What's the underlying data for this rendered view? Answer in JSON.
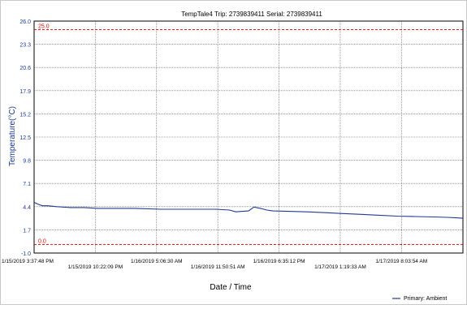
{
  "chart_data": {
    "type": "line",
    "title": "TempTale4  Trip: 2739839411  Serial: 2739839411",
    "xlabel": "Date / Time",
    "ylabel": "Temperature(°C)",
    "ylim": [
      -1.0,
      26.0
    ],
    "y_ticks": [
      "26.0",
      "23.3",
      "20.6",
      "17.9",
      "15.2",
      "12.5",
      "9.8",
      "7.1",
      "4.4",
      "1.7",
      "-1.0"
    ],
    "x_tick_labels": [
      "1/15/2019 3:37:48 PM",
      "1/15/2019 10:22:09 PM",
      "1/16/2019 5:06:30 AM",
      "1/16/2019 11:50:51 AM",
      "1/16/2019 6:35:12 PM",
      "1/17/2019 1:19:33 AM",
      "1/17/2019 8:03:54 AM"
    ],
    "x_tick_hours": [
      0,
      6.7392,
      13.4783,
      20.2175,
      26.9567,
      33.6958,
      40.435
    ],
    "xlim_hours": [
      0,
      47.2
    ],
    "thresholds": [
      {
        "label": "25.0",
        "value": 25.0,
        "color": "#e00000"
      },
      {
        "label": "0.0",
        "value": 0.0,
        "color": "#e00000"
      }
    ],
    "grid": true,
    "legend_position": "bottom-right",
    "series": [
      {
        "name": "Primary: Ambient",
        "color": "#1f3a93",
        "x_hours": [
          0,
          0.4,
          0.9,
          1.5,
          2.5,
          4,
          5.5,
          7,
          9,
          11,
          14,
          17,
          20,
          21.5,
          22.2,
          22.9,
          23.6,
          24.2,
          24.9,
          25.6,
          26.3,
          28,
          30,
          32,
          34,
          36,
          38,
          40,
          42,
          44,
          45.5,
          46.5,
          47.2
        ],
        "values": [
          4.9,
          4.7,
          4.5,
          4.5,
          4.4,
          4.3,
          4.3,
          4.2,
          4.2,
          4.2,
          4.1,
          4.1,
          4.1,
          4.0,
          3.8,
          3.85,
          3.9,
          4.35,
          4.2,
          4.0,
          3.9,
          3.85,
          3.8,
          3.7,
          3.6,
          3.5,
          3.4,
          3.3,
          3.25,
          3.2,
          3.15,
          3.1,
          3.05
        ]
      }
    ]
  }
}
